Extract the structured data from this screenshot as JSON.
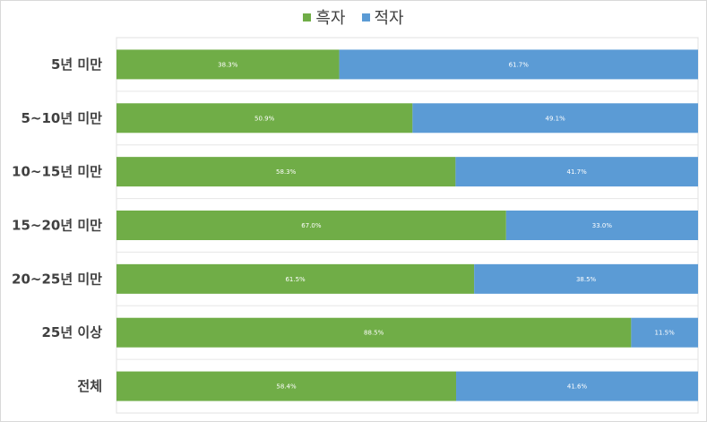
{
  "chart_data": {
    "type": "bar",
    "orientation": "horizontal",
    "stacked": "100%",
    "categories": [
      "5년 미만",
      "5~10년 미만",
      "10~15년 미만",
      "15~20년 미만",
      "20~25년 미만",
      "25년 이상",
      "전체"
    ],
    "series": [
      {
        "name": "흑자",
        "color": "#70ad47",
        "values": [
          38.3,
          50.9,
          58.3,
          67.0,
          61.5,
          88.5,
          58.4
        ],
        "labels": [
          "38.3%",
          "50.9%",
          "58.3%",
          "67.0%",
          "61.5%",
          "88.5%",
          "58.4%"
        ]
      },
      {
        "name": "적자",
        "color": "#5b9bd5",
        "values": [
          61.7,
          49.1,
          41.7,
          33.0,
          38.5,
          11.5,
          41.6
        ],
        "labels": [
          "61.7%",
          "49.1%",
          "41.7%",
          "33.0%",
          "38.5%",
          "11.5%",
          "41.6%"
        ]
      }
    ],
    "xlim": [
      0,
      100
    ],
    "grid": true,
    "legend_position": "top"
  }
}
